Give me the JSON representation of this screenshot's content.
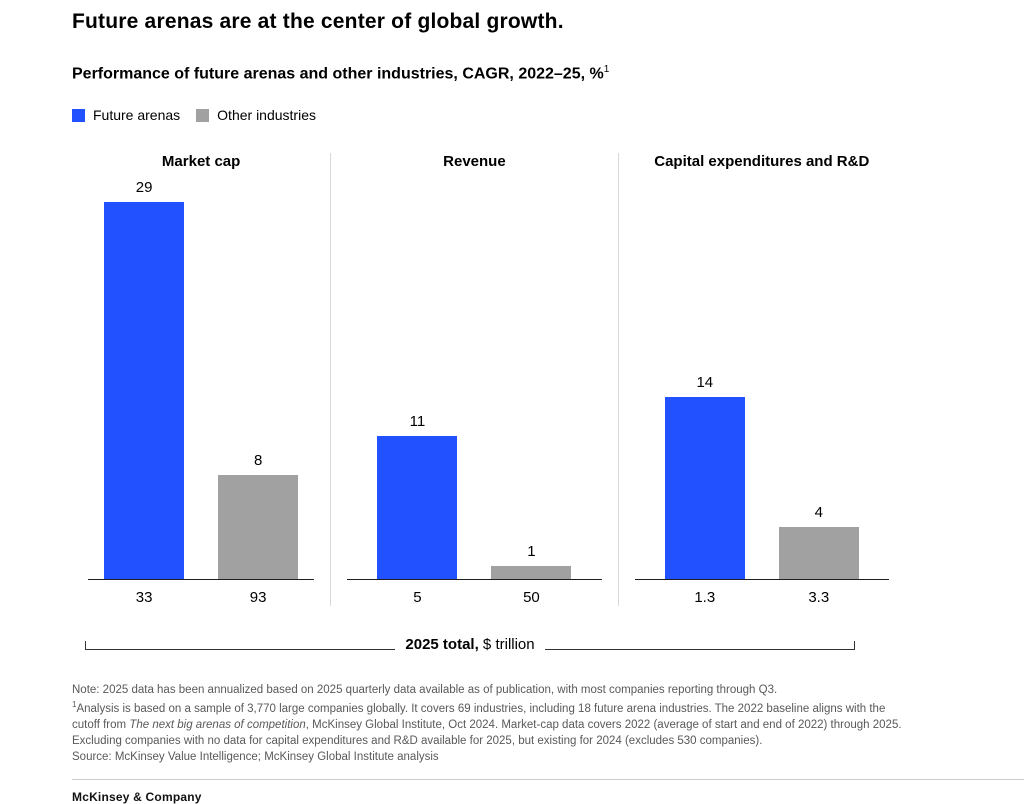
{
  "header": {
    "title": "Future arenas are at the center of global growth.",
    "subtitle": "Performance of future arenas and other industries, CAGR, 2022–25, %",
    "subtitle_superscript": "1"
  },
  "legend": {
    "future_label": "Future arenas",
    "other_label": "Other industries"
  },
  "chart_data": {
    "type": "bar",
    "title": "Performance of future arenas and other industries, CAGR, 2022–25, %",
    "unit": "% CAGR, 2022–25",
    "ylim": [
      0,
      30
    ],
    "grid": "off",
    "legend_position": "top-left",
    "colors": {
      "future": "#2251ff",
      "other": "#a1a1a1"
    },
    "series_names": [
      "Future arenas",
      "Other industries"
    ],
    "panels": [
      {
        "title": "Market cap",
        "bars": [
          {
            "series": "Future arenas",
            "cagr_value": 29,
            "total_2025_trillion": "33"
          },
          {
            "series": "Other industries",
            "cagr_value": 8,
            "total_2025_trillion": "93"
          }
        ]
      },
      {
        "title": "Revenue",
        "bars": [
          {
            "series": "Future arenas",
            "cagr_value": 11,
            "total_2025_trillion": "5"
          },
          {
            "series": "Other industries",
            "cagr_value": 1,
            "total_2025_trillion": "50"
          }
        ]
      },
      {
        "title": "Capital expenditures and R&D",
        "bars": [
          {
            "series": "Future arenas",
            "cagr_value": 14,
            "total_2025_trillion": "1.3"
          },
          {
            "series": "Other industries",
            "cagr_value": 4,
            "total_2025_trillion": "3.3"
          }
        ]
      }
    ],
    "totals_axis_label_bold": "2025 total,",
    "totals_axis_label_regular": " $ trillion"
  },
  "notes": {
    "line1": "Note: 2025 data has been annualized based on 2025 quarterly data available as of publication, with most companies reporting through Q3.",
    "line2_sup": "1",
    "line2_part1": "Analysis is based on a sample of 3,770 large companies globally. It covers 69 industries, including 18 future arena industries. The 2022 baseline aligns with the cutoff from ",
    "line2_italic": "The next big arenas of competition",
    "line2_part2": ", McKinsey Global Institute, Oct 2024. Market-cap data covers 2022 (average of start and end of 2022) through 2025. Excluding companies with no data for capital expenditures and R&D available for 2025, but existing for 2024 (excludes 530 companies).",
    "line3": "Source: McKinsey Value Intelligence; McKinsey Global Institute analysis"
  },
  "footer": {
    "brand": "McKinsey & Company"
  }
}
